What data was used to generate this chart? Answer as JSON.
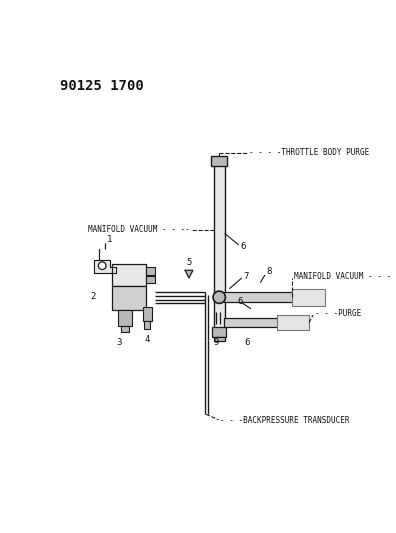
{
  "title": "90125 1700",
  "bg": "#ffffff",
  "lc": "#1a1a1a",
  "tc": "#111111",
  "g1": "#d0d0d0",
  "g2": "#b8b8b8",
  "g3": "#e8e8e8",
  "figsize": [
    3.96,
    5.33
  ],
  "dpi": 100,
  "throttle_label": "- - - -THROTTLE BODY PURGE",
  "manifold_left_label": "MANIFOLD VACUUM - - --",
  "manifold_right_label": "MANIFOLD VACUUM - - -",
  "purge_label": "- - -PURGE",
  "backpressure_label": "- - -BACKPRESSURE TRANSDUCER"
}
